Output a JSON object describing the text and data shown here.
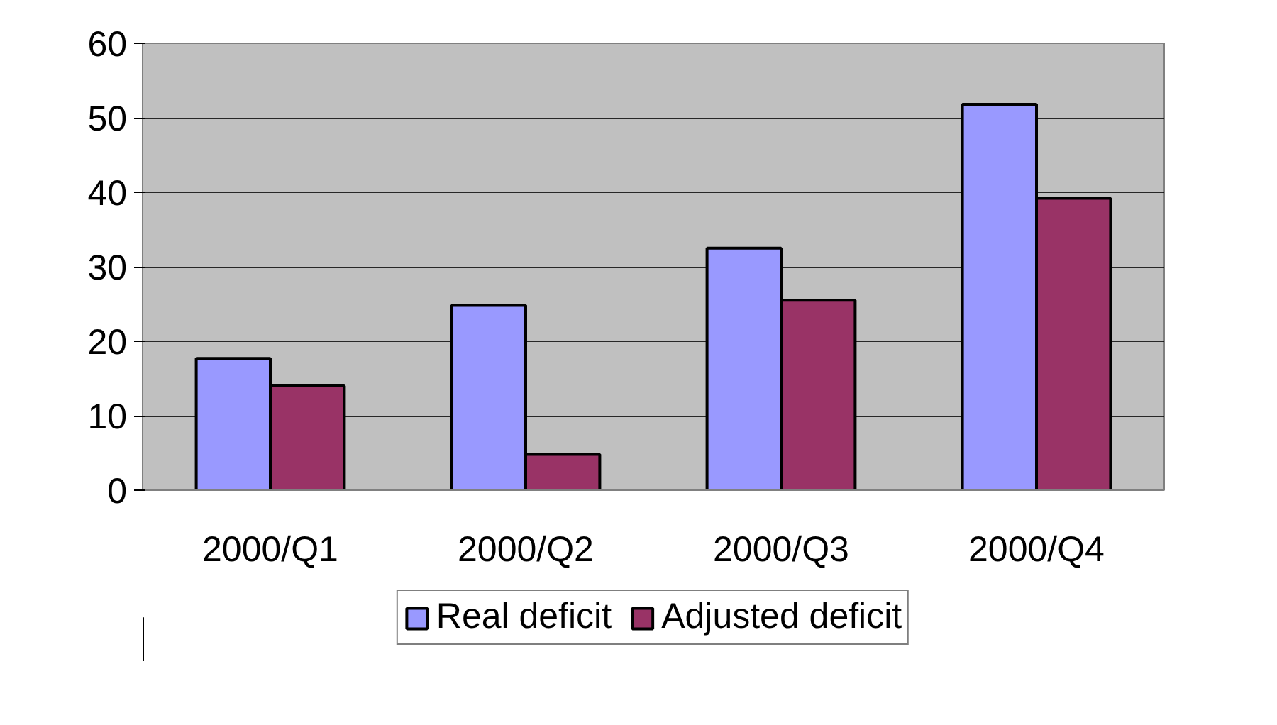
{
  "chart_data": {
    "type": "bar",
    "categories": [
      "2000/Q1",
      "2000/Q2",
      "2000/Q3",
      "2000/Q4"
    ],
    "series": [
      {
        "name": "Real deficit",
        "color": "#9999ff",
        "values": [
          17.7,
          24.8,
          32.5,
          51.8
        ]
      },
      {
        "name": "Adjusted deficit",
        "color": "#993366",
        "values": [
          14.0,
          4.8,
          25.5,
          39.2
        ]
      }
    ],
    "ylim": [
      0,
      60
    ],
    "yticks": [
      0,
      10,
      20,
      30,
      40,
      50,
      60
    ],
    "grid": "y",
    "legend": "bottom"
  }
}
